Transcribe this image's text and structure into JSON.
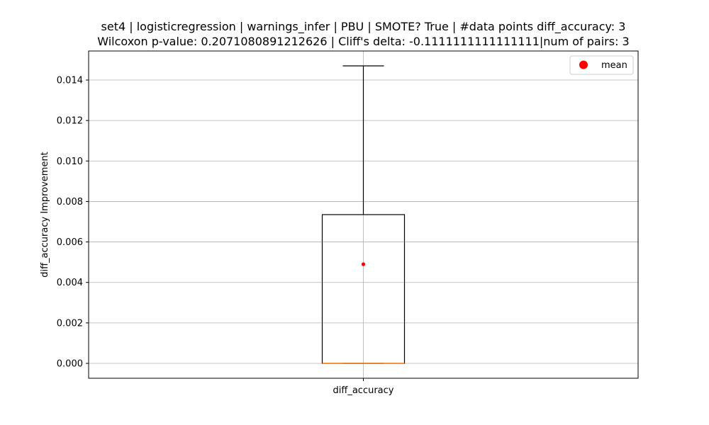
{
  "chart_data": {
    "type": "box",
    "title_lines": [
      "set4 | logisticregression | warnings_infer | PBU | SMOTE? True | #data points diff_accuracy: 3",
      "Wilcoxon p-value: 0.2071080891212626 | Cliff's delta: -0.1111111111111111|num of pairs: 3"
    ],
    "xlabel": "",
    "ylabel": "diff_accuracy Improvement",
    "categories": [
      "diff_accuracy"
    ],
    "ylim": [
      -0.000735,
      0.015435
    ],
    "yticks": [
      0.0,
      0.002,
      0.004,
      0.006,
      0.008,
      0.01,
      0.012,
      0.014
    ],
    "ytick_labels": [
      "0.000",
      "0.002",
      "0.004",
      "0.006",
      "0.008",
      "0.010",
      "0.012",
      "0.014"
    ],
    "grid": true,
    "legend_position": "upper right",
    "box": {
      "whisker_low": 0.0,
      "q1": 0.0,
      "median": 0.0,
      "q3": 0.00735,
      "whisker_high": 0.0147,
      "mean": 0.0049
    },
    "legend": [
      {
        "label": "mean",
        "marker": "circle",
        "color": "#ff0000"
      }
    ],
    "colors": {
      "box": "#000000",
      "median": "#ff7f0e",
      "mean": "#ff0000",
      "grid": "#b0b0b0"
    }
  }
}
